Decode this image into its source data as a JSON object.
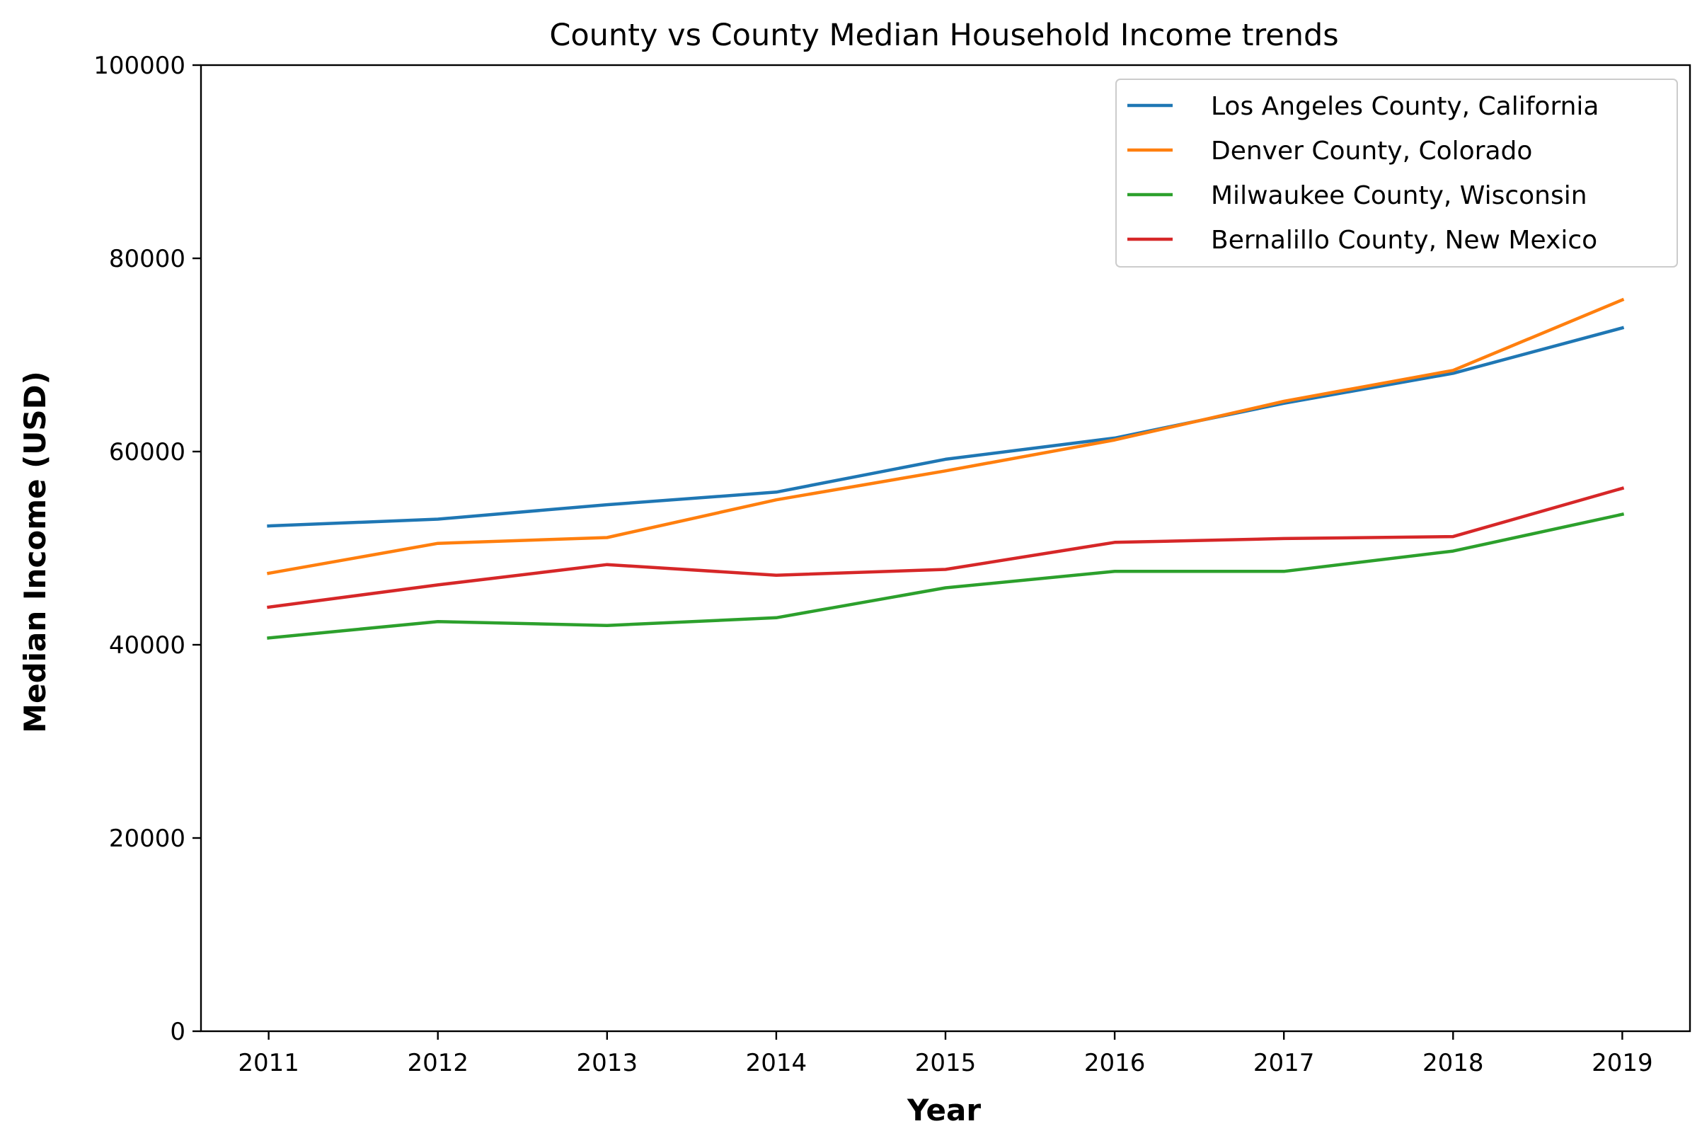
{
  "chart_data": {
    "type": "line",
    "title": "County vs County Median Household Income trends",
    "xlabel": "Year",
    "ylabel": "Median Income (USD)",
    "x": [
      2011,
      2012,
      2013,
      2014,
      2015,
      2016,
      2017,
      2018,
      2019
    ],
    "xlim": [
      2010.6,
      2019.4
    ],
    "ylim": [
      0,
      100000
    ],
    "yticks": [
      0,
      20000,
      40000,
      60000,
      80000,
      100000
    ],
    "grid": false,
    "legend_position": "top-right",
    "series": [
      {
        "name": "Los Angeles County, California",
        "color": "#1f77b4",
        "values": [
          52300,
          53000,
          54500,
          55800,
          59200,
          61400,
          65000,
          68100,
          72800
        ]
      },
      {
        "name": "Denver County, Colorado",
        "color": "#ff7f0e",
        "values": [
          47400,
          50500,
          51100,
          55000,
          58000,
          61200,
          65200,
          68400,
          75700
        ]
      },
      {
        "name": "Milwaukee County, Wisconsin",
        "color": "#2ca02c",
        "values": [
          40700,
          42400,
          42000,
          42800,
          45900,
          47600,
          47600,
          49700,
          53500
        ]
      },
      {
        "name": "Bernalillo County, New Mexico",
        "color": "#d62728",
        "values": [
          43900,
          46200,
          48300,
          47200,
          47800,
          50600,
          51000,
          51200,
          56200
        ]
      }
    ]
  }
}
